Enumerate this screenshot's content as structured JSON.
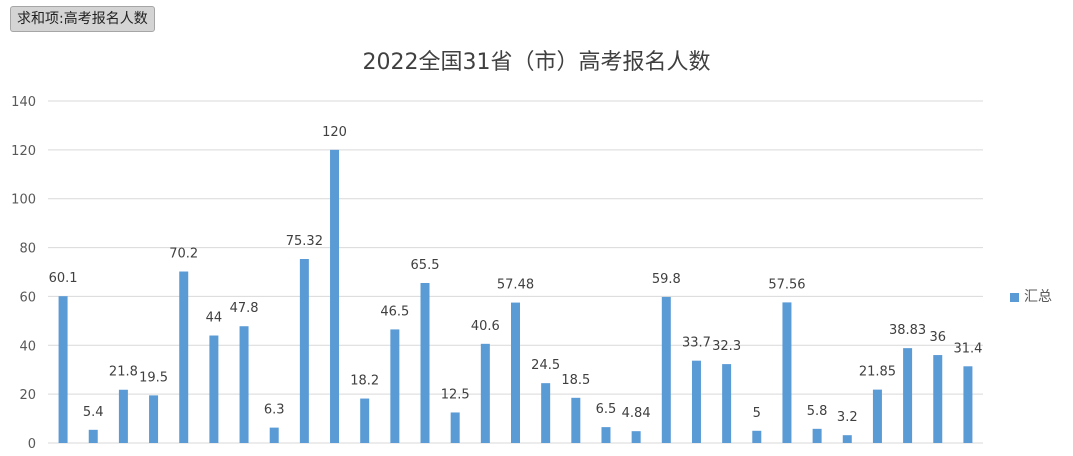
{
  "field_button": "求和项:高考报名人数",
  "chart_data": {
    "type": "bar",
    "title": "2022全国31省（市）高考报名人数",
    "series": [
      {
        "name": "汇总",
        "values": [
          60.1,
          5.4,
          21.8,
          19.5,
          70.2,
          44,
          47.8,
          6.3,
          75.32,
          120,
          18.2,
          46.5,
          65.5,
          12.5,
          40.6,
          57.48,
          24.5,
          18.5,
          6.5,
          4.84,
          59.8,
          33.7,
          32.3,
          5,
          57.56,
          5.8,
          3.2,
          21.85,
          38.83,
          36,
          31.4
        ],
        "labels": [
          "60.1",
          "5.4",
          "21.8",
          "19.5",
          "70.2",
          "44",
          "47.8",
          "6.3",
          "75.32",
          "120",
          "18.2",
          "46.5",
          "65.5",
          "12.5",
          "40.6",
          "57.48",
          "24.5",
          "18.5",
          "6.5",
          "4.84",
          "59.8",
          "33.7",
          "32.3",
          "5",
          "57.56",
          "5.8",
          "3.2",
          "21.85",
          "38.83",
          "36",
          "31.4"
        ],
        "color": "#5b9bd5"
      }
    ],
    "ylim": [
      0,
      140
    ],
    "yticks": [
      "0",
      "20",
      "40",
      "60",
      "80",
      "100",
      "120",
      "140"
    ],
    "grid": true,
    "legend": "right"
  }
}
